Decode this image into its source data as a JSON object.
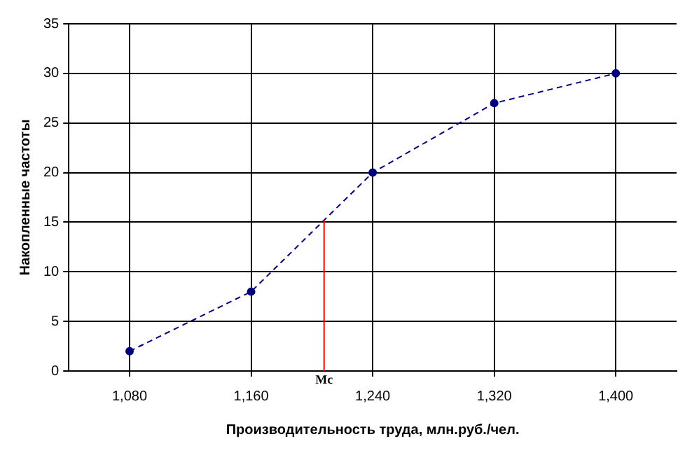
{
  "chart_data": {
    "type": "line",
    "xlabel": "Производительность труда, млн.руб./чел.",
    "ylabel": "Накопленные частоты",
    "x": [
      1080,
      1160,
      1240,
      1320,
      1400
    ],
    "series": [
      {
        "color": "#000080",
        "values": [
          2,
          8,
          20,
          27,
          30
        ]
      }
    ],
    "xlim": [
      1040,
      1440
    ],
    "xticks": [
      {
        "value": 1080,
        "label": "1,080"
      },
      {
        "value": 1160,
        "label": "1,160"
      },
      {
        "value": 1240,
        "label": "1,240"
      },
      {
        "value": 1320,
        "label": "1,320"
      },
      {
        "value": 1400,
        "label": "1,400"
      }
    ],
    "ylim": [
      0,
      35
    ],
    "yticks": [
      0,
      5,
      10,
      15,
      20,
      25,
      30,
      35
    ],
    "ref_lines": [
      {
        "axis": "x",
        "value": 1208,
        "label": "Mc",
        "color": "#ff0000"
      }
    ],
    "grid": true,
    "legend": false,
    "marker": "circle",
    "line_style": "dashed"
  }
}
